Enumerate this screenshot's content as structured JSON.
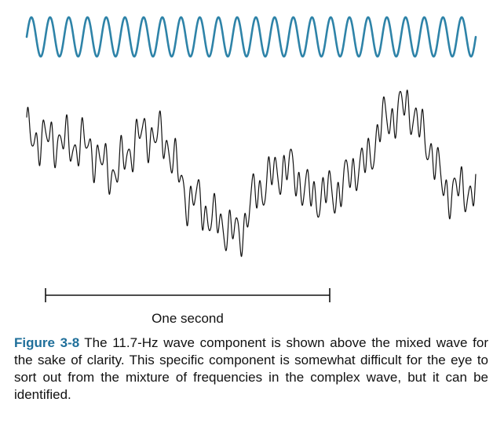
{
  "figure": {
    "component_wave": {
      "cycles_shown": 24,
      "color": "#2e83a8"
    },
    "mixed_wave": {
      "color": "#111111"
    },
    "scale_bar": {
      "label": "One second"
    }
  },
  "caption": {
    "label": "Figure 3-8",
    "text": "The 11.7-Hz wave component is shown above the mixed wave for the sake of clarity. This specific component is some­what difficult for the eye to sort out from the mixture of frequencies in the complex wave, but it can be identified."
  }
}
